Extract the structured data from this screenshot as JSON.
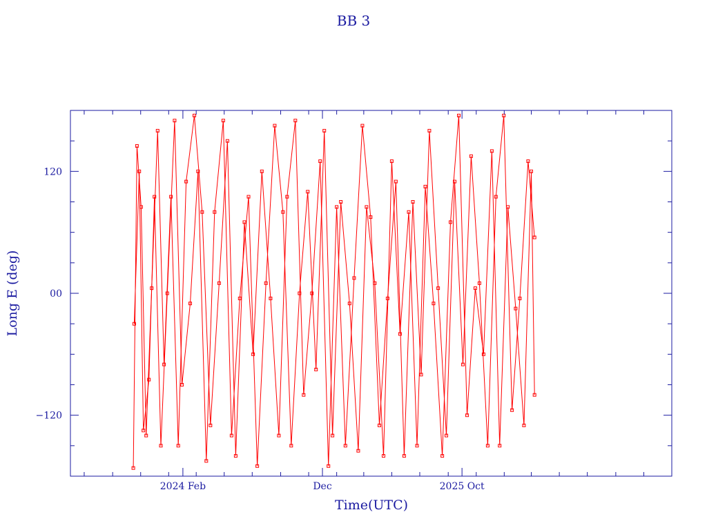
{
  "chart_data": {
    "type": "line",
    "title": "BB 3",
    "xlabel": "Time(UTC)",
    "ylabel": "Long E (deg)",
    "x_axis_kind": "date",
    "xlim": [
      "2023-06-01",
      "2027-01-01"
    ],
    "ylim": [
      -180,
      180
    ],
    "x_ticks": [
      {
        "date": "2024-02-01",
        "label": "2024 Feb"
      },
      {
        "date": "2024-12-01",
        "label": "Dec"
      },
      {
        "date": "2025-10-01",
        "label": "2025 Oct"
      }
    ],
    "y_ticks": [
      {
        "value": 120,
        "label": "120"
      },
      {
        "value": 0,
        "label": "00"
      },
      {
        "value": -120,
        "label": "−120"
      }
    ],
    "grid": false,
    "series_color": "#ff0000",
    "axis_color": "#1a1aa0",
    "marker": "open-square",
    "series": [
      {
        "x": [
          "2023-10-16",
          "2023-10-24",
          "2023-11-02",
          "2023-11-13",
          "2023-11-25",
          "2023-12-08",
          "2023-12-22",
          "2024-01-06",
          "2024-01-22",
          "2024-02-08",
          "2024-02-26",
          "2024-03-14",
          "2024-04-01",
          "2024-04-20",
          "2024-05-08",
          "2024-05-26",
          "2024-06-14",
          "2024-07-03",
          "2024-07-22",
          "2024-08-10",
          "2024-08-28",
          "2024-09-15",
          "2024-10-03",
          "2024-10-21",
          "2024-11-08",
          "2024-11-26",
          "2024-12-14",
          "2025-01-01",
          "2025-01-20",
          "2025-02-08",
          "2025-02-26",
          "2025-03-16",
          "2025-04-04",
          "2025-04-22",
          "2025-05-10",
          "2025-05-28",
          "2025-06-16",
          "2025-07-04",
          "2025-07-22",
          "2025-08-10",
          "2025-08-28",
          "2025-09-15",
          "2025-10-03",
          "2025-10-21",
          "2025-11-08",
          "2025-11-26",
          "2025-12-14",
          "2025-12-31",
          "2026-01-18",
          "2026-02-04",
          "2026-02-22",
          "2026-03-08"
        ],
        "y": [
          -172,
          145,
          85,
          -140,
          5,
          160,
          -70,
          95,
          -150,
          110,
          175,
          80,
          -130,
          10,
          150,
          -160,
          70,
          -60,
          120,
          -5,
          -140,
          95,
          170,
          -100,
          0,
          130,
          -170,
          85,
          -150,
          15,
          165,
          75,
          -130,
          -5,
          110,
          -160,
          90,
          -80,
          160,
          5,
          -140,
          110,
          -70,
          135,
          10,
          -150,
          95,
          175,
          -115,
          -5,
          130,
          55
        ]
      },
      {
        "x": [
          "2023-10-18",
          "2023-10-29",
          "2023-11-07",
          "2023-11-19",
          "2023-12-01",
          "2023-12-15",
          "2023-12-29",
          "2024-01-14",
          "2024-01-30",
          "2024-02-17",
          "2024-03-05",
          "2024-03-23",
          "2024-04-10",
          "2024-04-29",
          "2024-05-17",
          "2024-06-04",
          "2024-06-23",
          "2024-07-12",
          "2024-07-31",
          "2024-08-19",
          "2024-09-06",
          "2024-09-24",
          "2024-10-12",
          "2024-10-30",
          "2024-11-17",
          "2024-12-05",
          "2024-12-23",
          "2025-01-10",
          "2025-01-29",
          "2025-02-17",
          "2025-03-07",
          "2025-03-25",
          "2025-04-13",
          "2025-05-01",
          "2025-05-19",
          "2025-06-07",
          "2025-06-25",
          "2025-07-13",
          "2025-07-31",
          "2025-08-19",
          "2025-09-06",
          "2025-09-24",
          "2025-10-12",
          "2025-10-30",
          "2025-11-17",
          "2025-12-05",
          "2025-12-22",
          "2026-01-09",
          "2026-01-26",
          "2026-02-13",
          "2026-03-01",
          "2026-03-08"
        ],
        "y": [
          -30,
          120,
          -135,
          -85,
          95,
          -150,
          0,
          170,
          -90,
          -10,
          120,
          -165,
          80,
          170,
          -140,
          -5,
          95,
          -170,
          10,
          165,
          80,
          -150,
          0,
          100,
          -75,
          160,
          -140,
          90,
          -10,
          -155,
          85,
          10,
          -160,
          130,
          -40,
          80,
          -150,
          105,
          -10,
          -160,
          70,
          175,
          -120,
          5,
          -60,
          140,
          -150,
          85,
          -15,
          -130,
          120,
          -100
        ]
      }
    ]
  }
}
